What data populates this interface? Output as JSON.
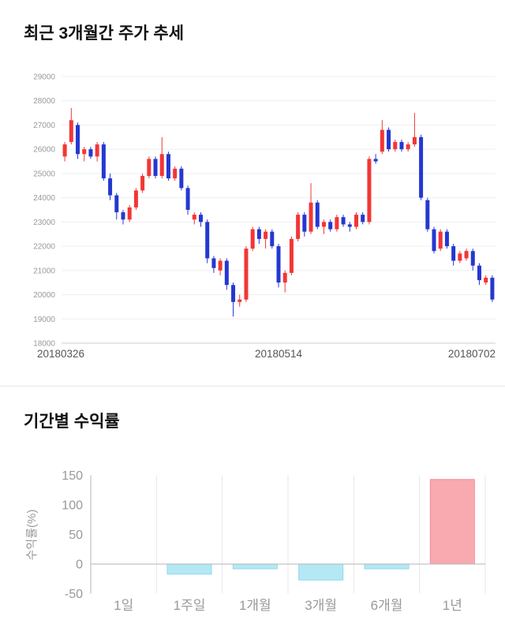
{
  "page": {
    "price_section_title": "최근 3개월간 주가 추세",
    "returns_section_title": "기간별 수익률"
  },
  "chart_data": [
    {
      "type": "candlestick",
      "title": "최근 3개월간 주가 추세",
      "ylim": [
        18000,
        29000
      ],
      "yticks": [
        29000,
        28000,
        27000,
        26000,
        25000,
        24000,
        23000,
        22000,
        21000,
        20000,
        19000,
        18000
      ],
      "xtick_labels": [
        "20180326",
        "20180514",
        "20180702"
      ],
      "grid": true,
      "up_color": "#f23636",
      "down_color": "#2438d0",
      "candles_ohlc": [
        [
          25700,
          26300,
          25500,
          26200
        ],
        [
          26300,
          27700,
          26200,
          27200
        ],
        [
          27000,
          27100,
          25600,
          25800
        ],
        [
          25800,
          26100,
          25500,
          26000
        ],
        [
          26000,
          26100,
          25600,
          25700
        ],
        [
          25700,
          26300,
          25500,
          26200
        ],
        [
          26200,
          26300,
          24700,
          24800
        ],
        [
          24800,
          25000,
          23900,
          24100
        ],
        [
          24100,
          24200,
          23100,
          23400
        ],
        [
          23400,
          23500,
          22900,
          23100
        ],
        [
          23100,
          23700,
          23000,
          23600
        ],
        [
          23600,
          24400,
          23500,
          24300
        ],
        [
          24300,
          25000,
          24200,
          24900
        ],
        [
          24900,
          25700,
          24800,
          25600
        ],
        [
          25600,
          25700,
          24800,
          24900
        ],
        [
          24900,
          26500,
          24800,
          25800
        ],
        [
          25800,
          25900,
          24700,
          24800
        ],
        [
          24800,
          25300,
          24700,
          25200
        ],
        [
          25200,
          25300,
          24300,
          24400
        ],
        [
          24400,
          24500,
          23300,
          23500
        ],
        [
          23100,
          23400,
          22900,
          23300
        ],
        [
          23300,
          23400,
          22800,
          23000
        ],
        [
          23000,
          23100,
          21300,
          21500
        ],
        [
          21500,
          21600,
          20900,
          21100
        ],
        [
          21000,
          21500,
          20800,
          21400
        ],
        [
          21400,
          21500,
          20200,
          20400
        ],
        [
          20400,
          20500,
          19100,
          19700
        ],
        [
          19700,
          20000,
          19500,
          19800
        ],
        [
          19800,
          22000,
          19700,
          21900
        ],
        [
          21900,
          22800,
          21800,
          22700
        ],
        [
          22700,
          22800,
          22100,
          22300
        ],
        [
          22300,
          22700,
          21900,
          22600
        ],
        [
          22600,
          22700,
          21900,
          22000
        ],
        [
          22000,
          22100,
          20300,
          20500
        ],
        [
          20500,
          21000,
          20100,
          20900
        ],
        [
          20900,
          22400,
          20800,
          22300
        ],
        [
          22300,
          23400,
          22200,
          23300
        ],
        [
          23300,
          23400,
          22400,
          22600
        ],
        [
          22600,
          24600,
          22500,
          23800
        ],
        [
          23800,
          23900,
          22700,
          22800
        ],
        [
          22800,
          23100,
          22500,
          23000
        ],
        [
          23000,
          23100,
          22600,
          22700
        ],
        [
          22700,
          23300,
          22600,
          23200
        ],
        [
          23200,
          23300,
          22800,
          22900
        ],
        [
          22900,
          23000,
          22600,
          22800
        ],
        [
          22800,
          23400,
          22700,
          23300
        ],
        [
          23300,
          23400,
          22900,
          23000
        ],
        [
          23000,
          25700,
          22900,
          25600
        ],
        [
          25600,
          25800,
          25400,
          25500
        ],
        [
          25900,
          27200,
          25800,
          26800
        ],
        [
          26800,
          26900,
          25900,
          26000
        ],
        [
          26000,
          26400,
          25900,
          26300
        ],
        [
          26300,
          26400,
          25900,
          26000
        ],
        [
          26000,
          26300,
          25900,
          26200
        ],
        [
          26200,
          27500,
          26100,
          26500
        ],
        [
          26500,
          26600,
          23900,
          24000
        ],
        [
          23900,
          24000,
          22600,
          22700
        ],
        [
          22700,
          22800,
          21700,
          21800
        ],
        [
          21900,
          22700,
          21800,
          22600
        ],
        [
          22600,
          22700,
          21900,
          22000
        ],
        [
          22000,
          22100,
          21200,
          21400
        ],
        [
          21400,
          21800,
          21300,
          21700
        ],
        [
          21500,
          21900,
          21400,
          21800
        ],
        [
          21800,
          21900,
          21000,
          21200
        ],
        [
          21200,
          21300,
          20400,
          20600
        ],
        [
          20500,
          20800,
          20400,
          20700
        ],
        [
          20700,
          20800,
          19700,
          19800
        ]
      ]
    },
    {
      "type": "bar",
      "title": "기간별 수익률",
      "ylabel": "수익률(%)",
      "categories": [
        "1일",
        "1주일",
        "1개월",
        "3개월",
        "6개월",
        "1년"
      ],
      "values": [
        0,
        -17,
        -8,
        -27,
        -8,
        143
      ],
      "yticks": [
        150,
        100,
        50,
        0,
        -50
      ],
      "ylim": [
        -50,
        150
      ],
      "grid": true,
      "legend": "none",
      "positive_color": "#f9a9b0",
      "positive_border": "#f28f98",
      "negative_color": "#b4e8f4",
      "negative_border": "#8fd8ea"
    }
  ]
}
